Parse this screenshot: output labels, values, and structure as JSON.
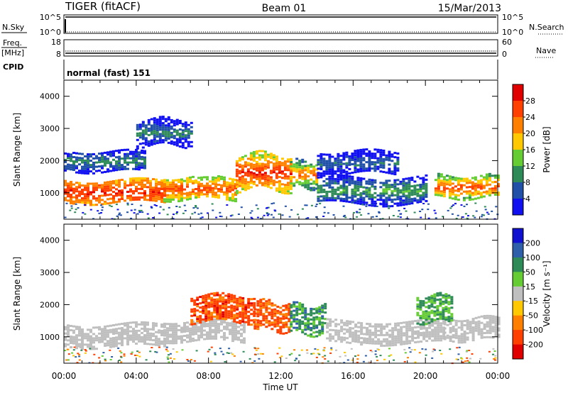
{
  "header": {
    "station": "TIGER (fitACF)",
    "beam": "Beam 01",
    "date": "15/Mar/2013"
  },
  "status_panels": {
    "nsky": {
      "label": "N.Sky",
      "ticks": [
        "10^5",
        "10^0"
      ]
    },
    "nsearch": {
      "label": "N.Search",
      "ticks": [
        "10^5",
        "10^0"
      ]
    },
    "freq": {
      "label_line1": "Freq.",
      "label_line2": "[MHz]",
      "ticks": [
        "18",
        "8"
      ]
    },
    "nave": {
      "label": "Nave",
      "ticks": [
        "60",
        "0"
      ]
    },
    "cpid": {
      "label": "CPID",
      "value": "normal (fast) 151"
    }
  },
  "chart_data": [
    {
      "type": "heatmap",
      "name": "power",
      "ylabel": "Slant Range [km]",
      "xlabel": "",
      "yticks": [
        "1000",
        "2000",
        "3000",
        "4000"
      ],
      "ylim": [
        180,
        4500
      ],
      "xlim_hours": [
        0,
        24
      ],
      "colorbar": {
        "label": "Power [dB]",
        "ticks": [
          "4",
          "8",
          "12",
          "16",
          "20",
          "24",
          "28"
        ],
        "colors": [
          "#1010f0",
          "#2050a8",
          "#2e8b57",
          "#66cc33",
          "#ffc800",
          "#ff8000",
          "#ff4000",
          "#e00000"
        ]
      },
      "bands": [
        {
          "range_km": [
            700,
            1400
          ],
          "hours": [
            0,
            5.5
          ],
          "levels": [
            22,
            30
          ]
        },
        {
          "range_km": [
            800,
            1500
          ],
          "hours": [
            5.5,
            9.5
          ],
          "levels": [
            16,
            28
          ]
        },
        {
          "range_km": [
            1100,
            2200
          ],
          "hours": [
            9.5,
            12.5
          ],
          "levels": [
            18,
            30
          ]
        },
        {
          "range_km": [
            1200,
            2000
          ],
          "hours": [
            12.5,
            14.0
          ],
          "levels": [
            10,
            26
          ]
        },
        {
          "range_km": [
            700,
            1500
          ],
          "hours": [
            14.0,
            20.0
          ],
          "levels": [
            4,
            14
          ]
        },
        {
          "range_km": [
            850,
            1550
          ],
          "hours": [
            20.5,
            24
          ],
          "levels": [
            14,
            28
          ]
        },
        {
          "range_km": [
            1700,
            2300
          ],
          "hours": [
            0,
            4.5
          ],
          "levels": [
            4,
            12
          ]
        },
        {
          "range_km": [
            1600,
            2300
          ],
          "hours": [
            14.0,
            18.5
          ],
          "levels": [
            2,
            10
          ]
        },
        {
          "range_km": [
            2500,
            3300
          ],
          "hours": [
            4.0,
            7.0
          ],
          "levels": [
            2,
            12
          ]
        }
      ]
    },
    {
      "type": "heatmap",
      "name": "velocity",
      "ylabel": "Slant Range [km]",
      "xlabel": "Time UT",
      "yticks": [
        "1000",
        "2000",
        "3000",
        "4000"
      ],
      "xticks": [
        "00:00",
        "04:00",
        "08:00",
        "12:00",
        "16:00",
        "20:00",
        "00:00"
      ],
      "ylim": [
        180,
        4500
      ],
      "xlim_hours": [
        0,
        24
      ],
      "colorbar": {
        "label": "Velocity [m s⁻¹]",
        "ticks": [
          "200",
          "100",
          "50",
          "15",
          "-15",
          "-50",
          "-100",
          "-200"
        ],
        "colors": [
          "#1010d0",
          "#2f5fa8",
          "#2e8b57",
          "#66cc33",
          "#bfbfbf",
          "#ffc800",
          "#ff8000",
          "#ff4000",
          "#e00000"
        ]
      },
      "bands": [
        {
          "range_km": [
            700,
            1400
          ],
          "hours": [
            0,
            5.5
          ],
          "values": [
            -15,
            15
          ]
        },
        {
          "range_km": [
            900,
            1500
          ],
          "hours": [
            5.5,
            10.0
          ],
          "values": [
            -15,
            15
          ]
        },
        {
          "range_km": [
            1500,
            2300
          ],
          "hours": [
            7.0,
            10.5
          ],
          "values": [
            -220,
            -60
          ]
        },
        {
          "range_km": [
            1200,
            2100
          ],
          "hours": [
            10.5,
            12.5
          ],
          "values": [
            -200,
            -50
          ]
        },
        {
          "range_km": [
            1100,
            2000
          ],
          "hours": [
            12.5,
            14.5
          ],
          "values": [
            20,
            120
          ]
        },
        {
          "range_km": [
            800,
            1500
          ],
          "hours": [
            14.5,
            21.0
          ],
          "values": [
            -15,
            15
          ]
        },
        {
          "range_km": [
            900,
            1600
          ],
          "hours": [
            21.0,
            24
          ],
          "values": [
            -15,
            15
          ]
        },
        {
          "range_km": [
            1500,
            2300
          ],
          "hours": [
            19.5,
            21.5
          ],
          "values": [
            20,
            80
          ]
        }
      ]
    }
  ]
}
